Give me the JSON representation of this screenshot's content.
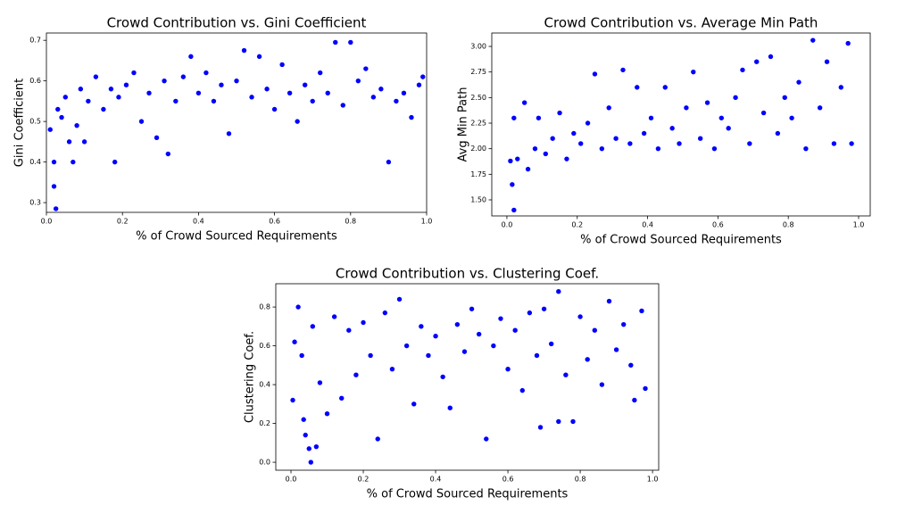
{
  "chart_data": [
    {
      "type": "scatter",
      "title": "Crowd Contribution vs. Gini Coefficient",
      "x_label": "% of Crowd Sourced Requirements",
      "y_label": "Gini Coefficient",
      "color": "#0000ff",
      "xlim": [
        0,
        1.0
      ],
      "ylim": [
        0.276,
        0.718
      ],
      "xticks": [
        {
          "value": 0,
          "label": "0.0"
        },
        0.2,
        0.4,
        0.6,
        0.8,
        {
          "value": 1,
          "label": "1.0"
        }
      ],
      "yticks": [
        0.3,
        0.4,
        0.5,
        0.6,
        0.7
      ],
      "x": [
        0.01,
        0.02,
        0.025,
        0.02,
        0.03,
        0.04,
        0.05,
        0.06,
        0.07,
        0.08,
        0.09,
        0.1,
        0.11,
        0.13,
        0.15,
        0.17,
        0.18,
        0.19,
        0.21,
        0.23,
        0.25,
        0.27,
        0.29,
        0.31,
        0.32,
        0.34,
        0.36,
        0.38,
        0.4,
        0.42,
        0.44,
        0.46,
        0.48,
        0.5,
        0.52,
        0.54,
        0.56,
        0.58,
        0.6,
        0.62,
        0.64,
        0.66,
        0.68,
        0.7,
        0.72,
        0.74,
        0.76,
        0.78,
        0.8,
        0.82,
        0.84,
        0.86,
        0.88,
        0.9,
        0.92,
        0.94,
        0.96,
        0.98,
        0.99
      ],
      "values": [
        0.48,
        0.34,
        0.285,
        0.4,
        0.53,
        0.51,
        0.56,
        0.45,
        0.4,
        0.49,
        0.58,
        0.45,
        0.55,
        0.61,
        0.53,
        0.58,
        0.4,
        0.56,
        0.59,
        0.62,
        0.5,
        0.57,
        0.46,
        0.6,
        0.42,
        0.55,
        0.61,
        0.66,
        0.57,
        0.62,
        0.55,
        0.59,
        0.47,
        0.6,
        0.675,
        0.56,
        0.66,
        0.58,
        0.53,
        0.64,
        0.57,
        0.5,
        0.59,
        0.55,
        0.62,
        0.57,
        0.695,
        0.54,
        0.695,
        0.6,
        0.63,
        0.56,
        0.58,
        0.4,
        0.55,
        0.57,
        0.51,
        0.59,
        0.61
      ]
    },
    {
      "type": "scatter",
      "title": "Crowd Contribution vs. Average Min Path",
      "x_label": "% of Crowd Sourced Requirements",
      "y_label": "Avg Min Path",
      "color": "#0000ff",
      "xlim": [
        -0.043,
        1.033
      ],
      "ylim": [
        1.343,
        3.131
      ],
      "xticks": [
        {
          "value": 0,
          "label": "0.0"
        },
        0.2,
        0.4,
        0.6,
        0.8,
        {
          "value": 1,
          "label": "1.0"
        }
      ],
      "yticks": [
        {
          "value": 1.5,
          "label": "1.50"
        },
        1.75,
        {
          "value": 2,
          "label": "2.00"
        },
        2.25,
        {
          "value": 2.5,
          "label": "2.50"
        },
        2.75,
        {
          "value": 3,
          "label": "3.00"
        }
      ],
      "x": [
        0.01,
        0.015,
        0.02,
        0.02,
        0.03,
        0.05,
        0.06,
        0.08,
        0.09,
        0.11,
        0.13,
        0.15,
        0.17,
        0.19,
        0.21,
        0.23,
        0.25,
        0.27,
        0.29,
        0.31,
        0.33,
        0.35,
        0.37,
        0.39,
        0.41,
        0.43,
        0.45,
        0.47,
        0.49,
        0.51,
        0.53,
        0.55,
        0.57,
        0.59,
        0.61,
        0.63,
        0.65,
        0.67,
        0.69,
        0.71,
        0.73,
        0.75,
        0.77,
        0.79,
        0.81,
        0.83,
        0.85,
        0.87,
        0.89,
        0.91,
        0.93,
        0.95,
        0.97,
        0.98
      ],
      "values": [
        1.88,
        1.65,
        1.4,
        2.3,
        1.9,
        2.45,
        1.8,
        2.0,
        2.3,
        1.95,
        2.1,
        2.35,
        1.9,
        2.15,
        2.05,
        2.25,
        2.73,
        2.0,
        2.4,
        2.1,
        2.77,
        2.05,
        2.6,
        2.15,
        2.3,
        2.0,
        2.6,
        2.2,
        2.05,
        2.4,
        2.75,
        2.1,
        2.45,
        2.0,
        2.3,
        2.2,
        2.5,
        2.77,
        2.05,
        2.85,
        2.35,
        2.9,
        2.15,
        2.5,
        2.3,
        2.65,
        2.0,
        3.06,
        2.4,
        2.85,
        2.05,
        2.6,
        3.03,
        2.05
      ]
    },
    {
      "type": "scatter",
      "title": "Crowd Contribution vs. Clustering Coef.",
      "x_label": "% of Crowd Sourced Requirements",
      "y_label": "Clustering Coef.",
      "color": "#0000ff",
      "xlim": [
        -0.042,
        1.017
      ],
      "ylim": [
        -0.041,
        0.92
      ],
      "xticks": [
        {
          "value": 0,
          "label": "0.0"
        },
        0.2,
        0.4,
        0.6,
        0.8,
        {
          "value": 1,
          "label": "1.0"
        }
      ],
      "yticks": [
        {
          "value": 0,
          "label": "0.0"
        },
        0.2,
        0.4,
        0.6,
        0.8
      ],
      "x": [
        0.005,
        0.01,
        0.02,
        0.03,
        0.035,
        0.04,
        0.05,
        0.055,
        0.06,
        0.07,
        0.08,
        0.1,
        0.12,
        0.14,
        0.16,
        0.18,
        0.2,
        0.22,
        0.24,
        0.26,
        0.28,
        0.3,
        0.32,
        0.34,
        0.36,
        0.38,
        0.4,
        0.42,
        0.44,
        0.46,
        0.48,
        0.5,
        0.52,
        0.54,
        0.56,
        0.58,
        0.6,
        0.62,
        0.64,
        0.66,
        0.68,
        0.69,
        0.7,
        0.72,
        0.74,
        0.74,
        0.76,
        0.78,
        0.8,
        0.82,
        0.84,
        0.86,
        0.88,
        0.9,
        0.92,
        0.94,
        0.95,
        0.97,
        0.98
      ],
      "values": [
        0.32,
        0.62,
        0.8,
        0.55,
        0.22,
        0.14,
        0.07,
        0.0,
        0.7,
        0.08,
        0.41,
        0.25,
        0.75,
        0.33,
        0.68,
        0.45,
        0.72,
        0.55,
        0.12,
        0.77,
        0.48,
        0.84,
        0.6,
        0.3,
        0.7,
        0.55,
        0.65,
        0.44,
        0.28,
        0.71,
        0.57,
        0.79,
        0.66,
        0.12,
        0.6,
        0.74,
        0.48,
        0.68,
        0.37,
        0.77,
        0.55,
        0.18,
        0.79,
        0.61,
        0.88,
        0.21,
        0.45,
        0.21,
        0.75,
        0.53,
        0.68,
        0.4,
        0.83,
        0.58,
        0.71,
        0.5,
        0.32,
        0.78,
        0.38
      ]
    }
  ]
}
